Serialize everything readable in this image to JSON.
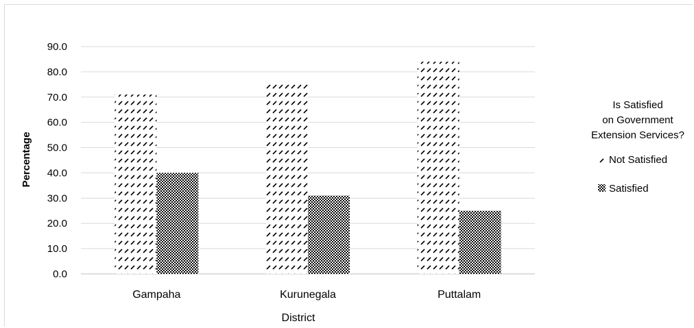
{
  "chart_data": {
    "type": "bar",
    "title": "",
    "xlabel": "District",
    "ylabel": "Percentage",
    "categories": [
      "Gampaha",
      "Kurunegala",
      "Puttalam"
    ],
    "ylim": [
      0,
      90
    ],
    "yticks": [
      "0.0",
      "10.0",
      "20.0",
      "30.0",
      "40.0",
      "50.0",
      "60.0",
      "70.0",
      "80.0",
      "90.0"
    ],
    "grid": true,
    "legend_position": "right",
    "legend_title": [
      "Is Satisfied",
      "on Government",
      "Extension Services?"
    ],
    "series": [
      {
        "name": "Not Satisfied",
        "values": [
          71,
          75,
          84
        ],
        "pattern": "diagonal-dash"
      },
      {
        "name": "Satisfied",
        "values": [
          40,
          31,
          25
        ],
        "pattern": "crosshatch"
      }
    ]
  }
}
